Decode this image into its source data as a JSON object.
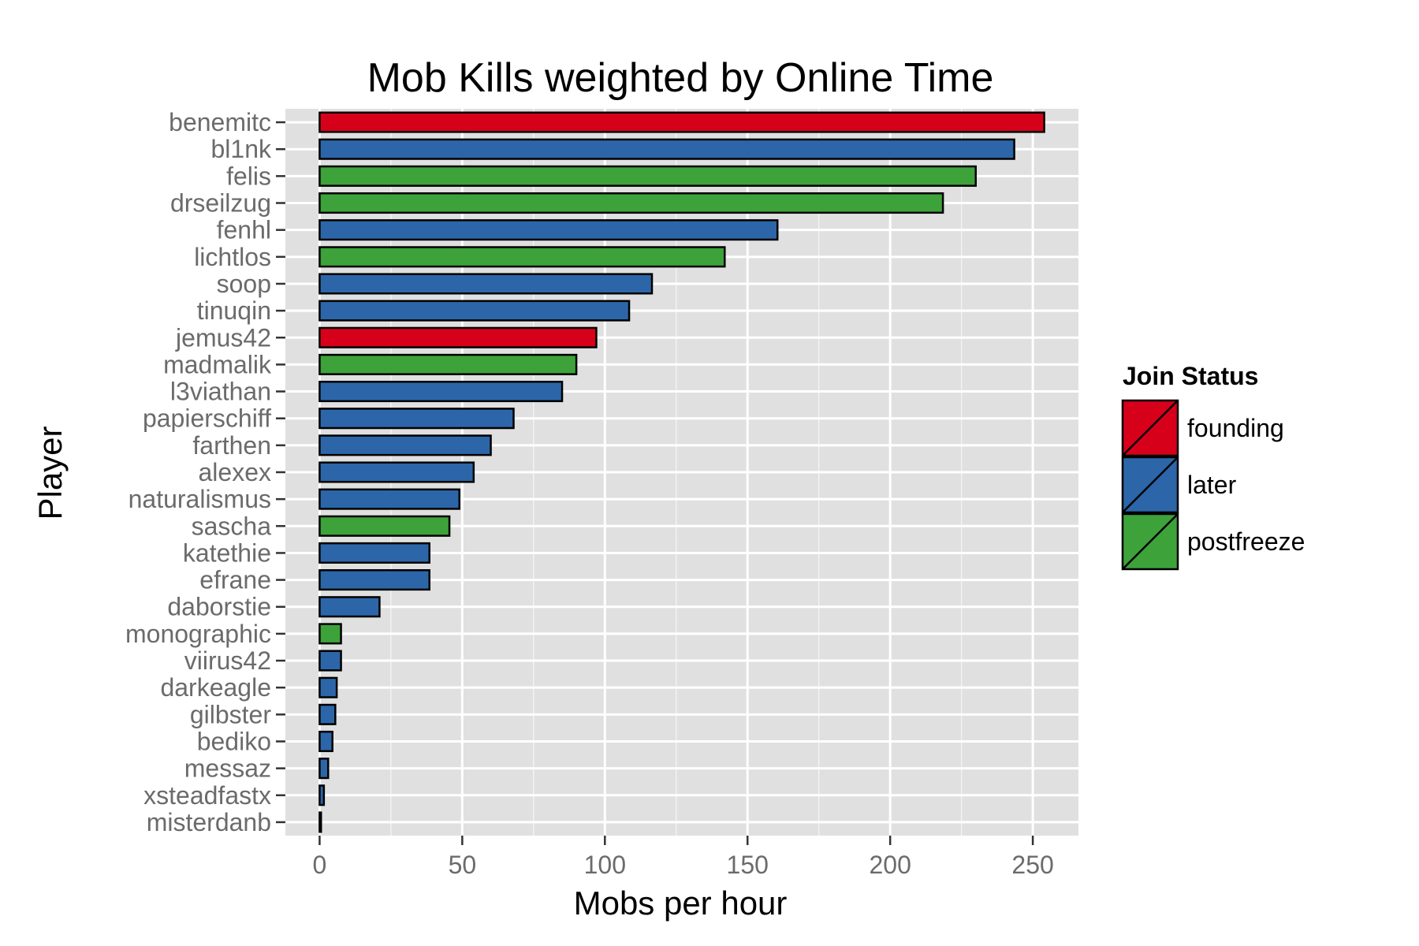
{
  "chart_data": {
    "type": "bar",
    "orientation": "horizontal",
    "title": "Mob Kills weighted by Online Time",
    "xlabel": "Mobs per hour",
    "ylabel": "Player",
    "xlim": [
      -12,
      266
    ],
    "xticks": [
      0,
      50,
      100,
      150,
      200,
      250
    ],
    "xtick_labels": [
      "0",
      "50",
      "100",
      "150",
      "200",
      "250"
    ],
    "grid": true,
    "legend": {
      "title": "Join Status",
      "placement": "right",
      "entries": [
        {
          "label": "founding",
          "color": "#d7001a"
        },
        {
          "label": "later",
          "color": "#2c66a8"
        },
        {
          "label": "postfreeze",
          "color": "#3da23a"
        }
      ]
    },
    "bars": [
      {
        "player": "benemitc",
        "value": 254,
        "status": "founding"
      },
      {
        "player": "bl1nk",
        "value": 243.5,
        "status": "later"
      },
      {
        "player": "felis",
        "value": 230,
        "status": "postfreeze"
      },
      {
        "player": "drseilzug",
        "value": 218.5,
        "status": "postfreeze"
      },
      {
        "player": "fenhl",
        "value": 160.5,
        "status": "later"
      },
      {
        "player": "lichtlos",
        "value": 142,
        "status": "postfreeze"
      },
      {
        "player": "soop",
        "value": 116.5,
        "status": "later"
      },
      {
        "player": "tinuqin",
        "value": 108.5,
        "status": "later"
      },
      {
        "player": "jemus42",
        "value": 97,
        "status": "founding"
      },
      {
        "player": "madmalik",
        "value": 90,
        "status": "postfreeze"
      },
      {
        "player": "l3viathan",
        "value": 85,
        "status": "later"
      },
      {
        "player": "papierschiff",
        "value": 68,
        "status": "later"
      },
      {
        "player": "farthen",
        "value": 60,
        "status": "later"
      },
      {
        "player": "alexex",
        "value": 54,
        "status": "later"
      },
      {
        "player": "naturalismus",
        "value": 49,
        "status": "later"
      },
      {
        "player": "sascha",
        "value": 45.5,
        "status": "postfreeze"
      },
      {
        "player": "katethie",
        "value": 38.5,
        "status": "later"
      },
      {
        "player": "efrane",
        "value": 38.5,
        "status": "later"
      },
      {
        "player": "daborstie",
        "value": 21,
        "status": "later"
      },
      {
        "player": "monographic",
        "value": 7.5,
        "status": "postfreeze"
      },
      {
        "player": "viirus42",
        "value": 7.5,
        "status": "later"
      },
      {
        "player": "darkeagle",
        "value": 6,
        "status": "later"
      },
      {
        "player": "gilbster",
        "value": 5.5,
        "status": "later"
      },
      {
        "player": "bediko",
        "value": 4.5,
        "status": "later"
      },
      {
        "player": "messaz",
        "value": 3,
        "status": "later"
      },
      {
        "player": "xsteadfastx",
        "value": 1.5,
        "status": "later"
      },
      {
        "player": "misterdanb",
        "value": 0.5,
        "status": "later"
      }
    ]
  },
  "colors": {
    "panel_background": "#e0e0e0",
    "gridline": "#ffffff",
    "bar_outline": "#000000",
    "tick_text": "#6b6b6b"
  }
}
